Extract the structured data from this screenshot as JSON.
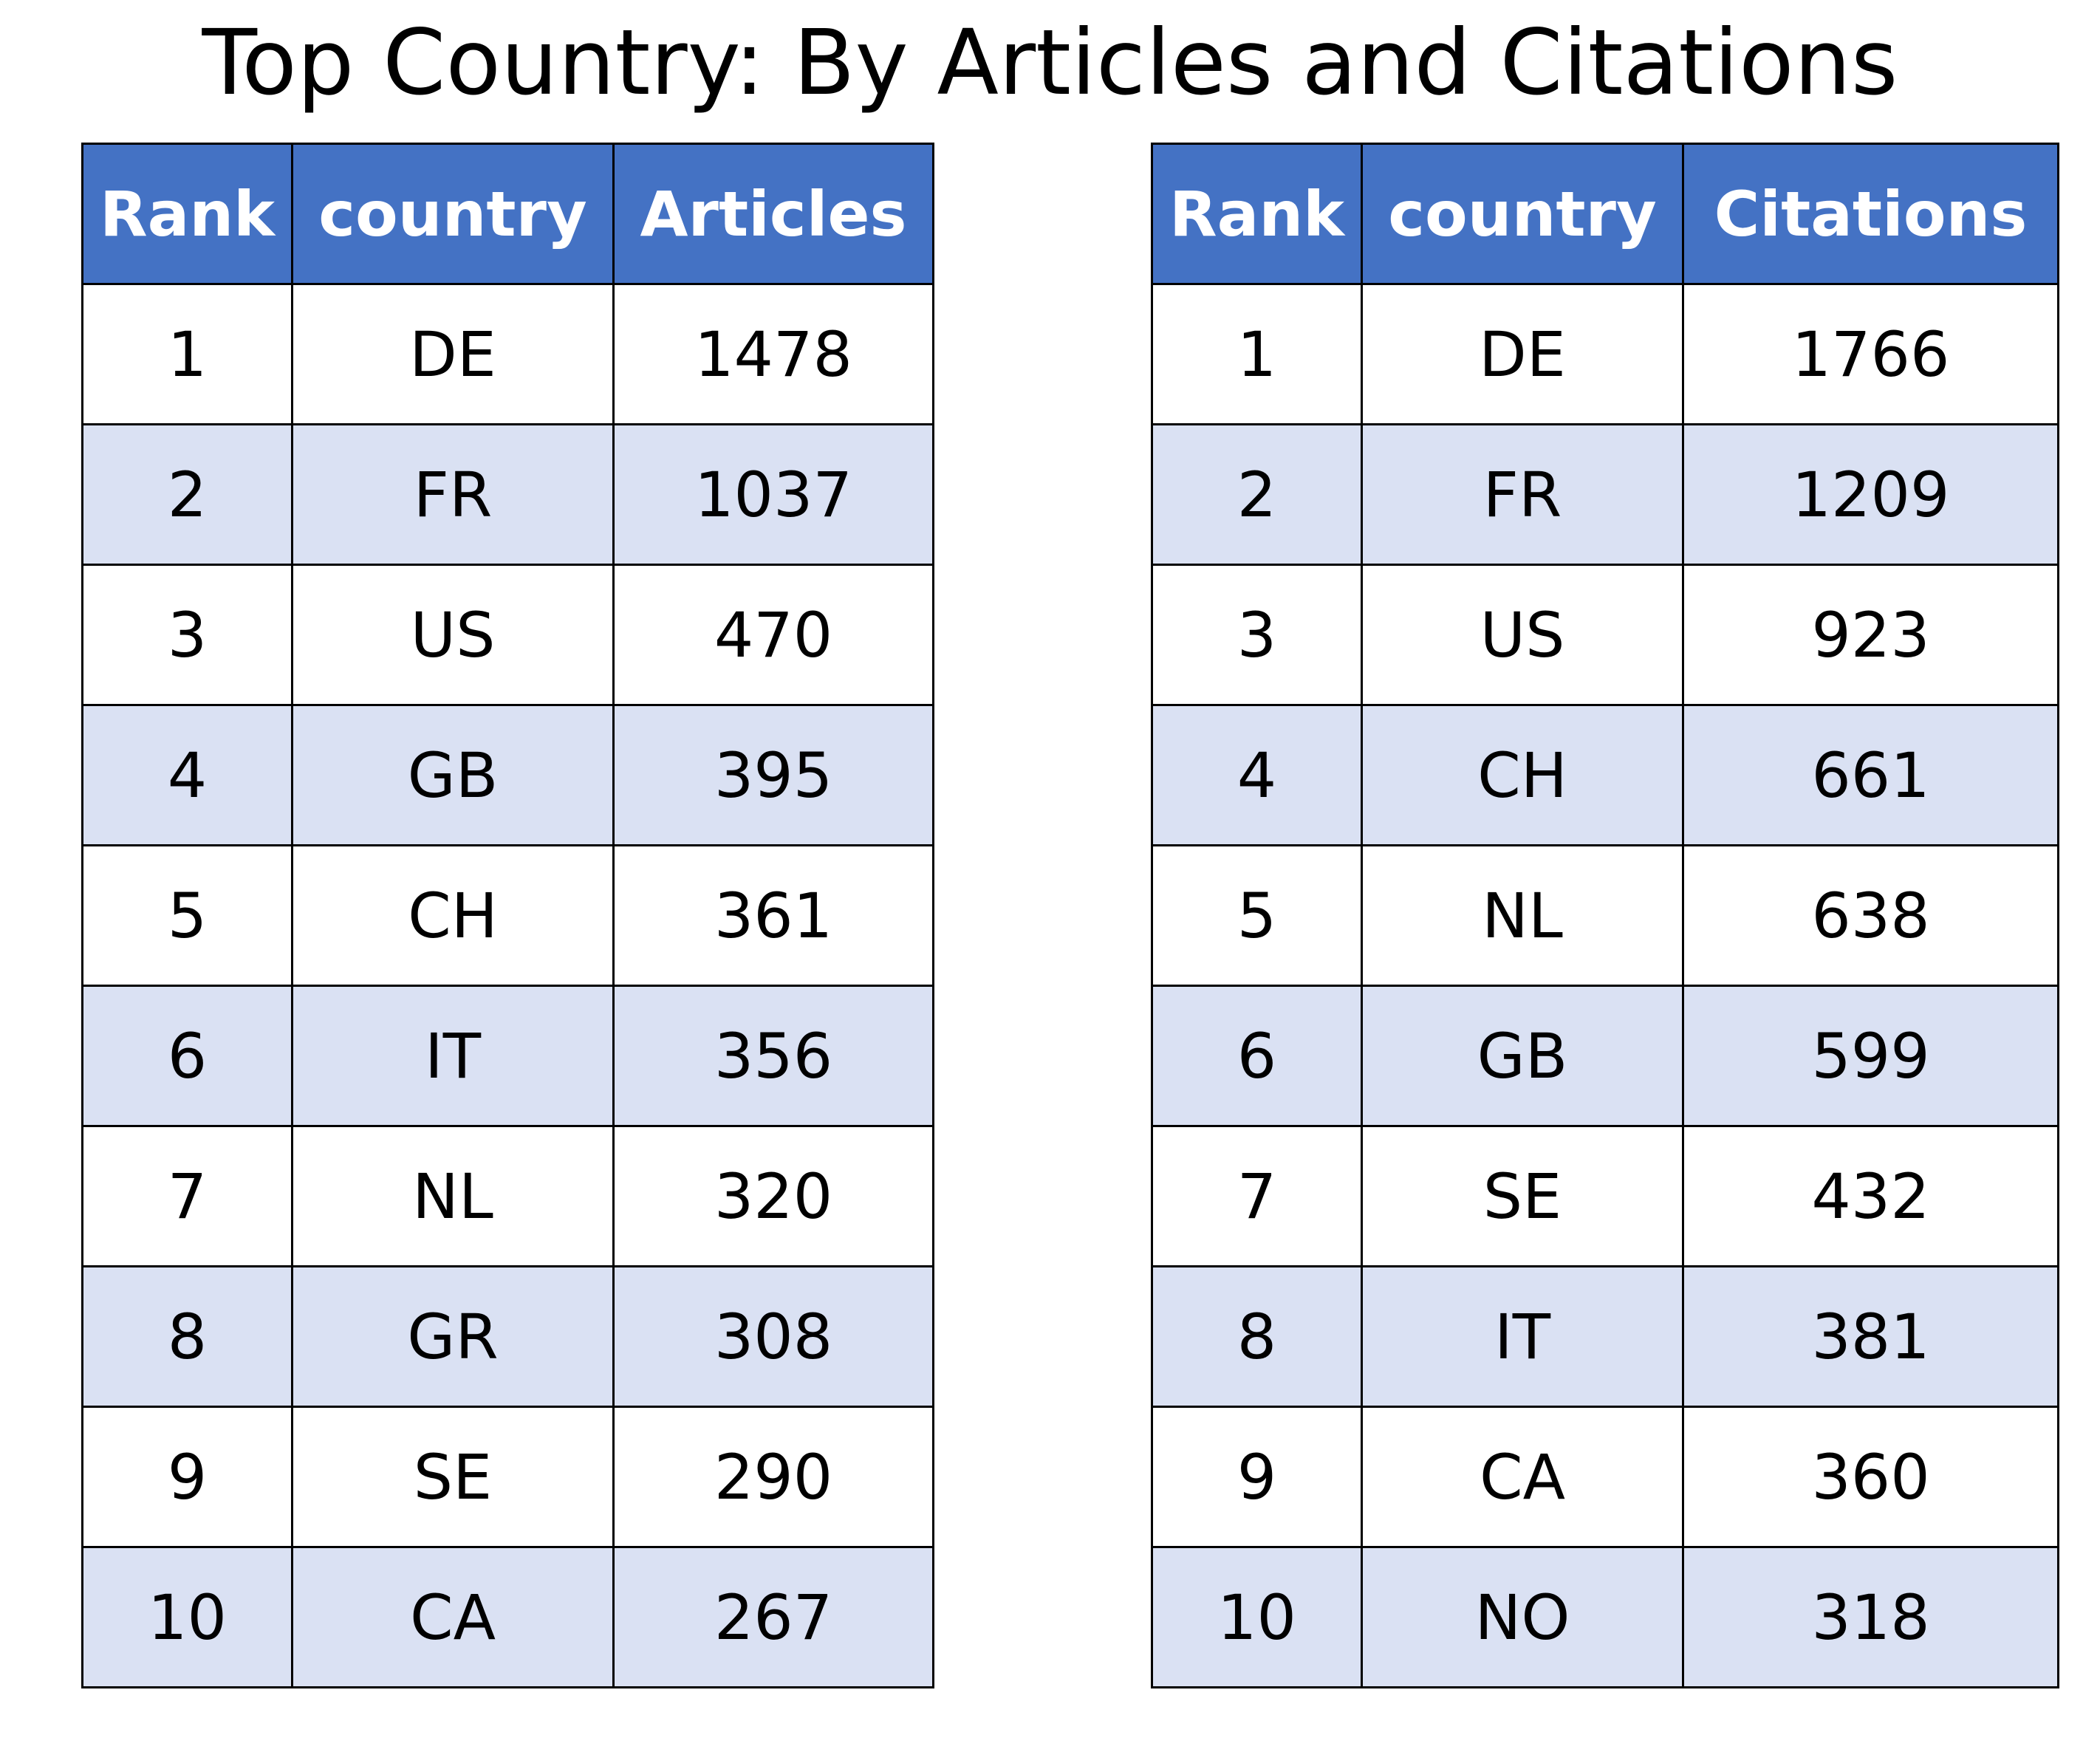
{
  "chart_data": [
    {
      "type": "table",
      "title": "Top Country: By Articles and Citations",
      "columns": [
        "Rank",
        "country",
        "Articles"
      ],
      "rows": [
        [
          "1",
          "DE",
          "1478"
        ],
        [
          "2",
          "FR",
          "1037"
        ],
        [
          "3",
          "US",
          "470"
        ],
        [
          "4",
          "GB",
          "395"
        ],
        [
          "5",
          "CH",
          "361"
        ],
        [
          "6",
          "IT",
          "356"
        ],
        [
          "7",
          "NL",
          "320"
        ],
        [
          "8",
          "GR",
          "308"
        ],
        [
          "9",
          "SE",
          "290"
        ],
        [
          "10",
          "CA",
          "267"
        ]
      ],
      "header_color": "#4472c4",
      "header_text_color": "#ffffff",
      "row_colors": [
        "#ffffff",
        "#dae1f3"
      ]
    },
    {
      "type": "table",
      "columns": [
        "Rank",
        "country",
        "Citations"
      ],
      "rows": [
        [
          "1",
          "DE",
          "1766"
        ],
        [
          "2",
          "FR",
          "1209"
        ],
        [
          "3",
          "US",
          "923"
        ],
        [
          "4",
          "CH",
          "661"
        ],
        [
          "5",
          "NL",
          "638"
        ],
        [
          "6",
          "GB",
          "599"
        ],
        [
          "7",
          "SE",
          "432"
        ],
        [
          "8",
          "IT",
          "381"
        ],
        [
          "9",
          "CA",
          "360"
        ],
        [
          "10",
          "NO",
          "318"
        ]
      ],
      "header_color": "#4472c4",
      "header_text_color": "#ffffff",
      "row_colors": [
        "#ffffff",
        "#dae1f3"
      ]
    }
  ]
}
